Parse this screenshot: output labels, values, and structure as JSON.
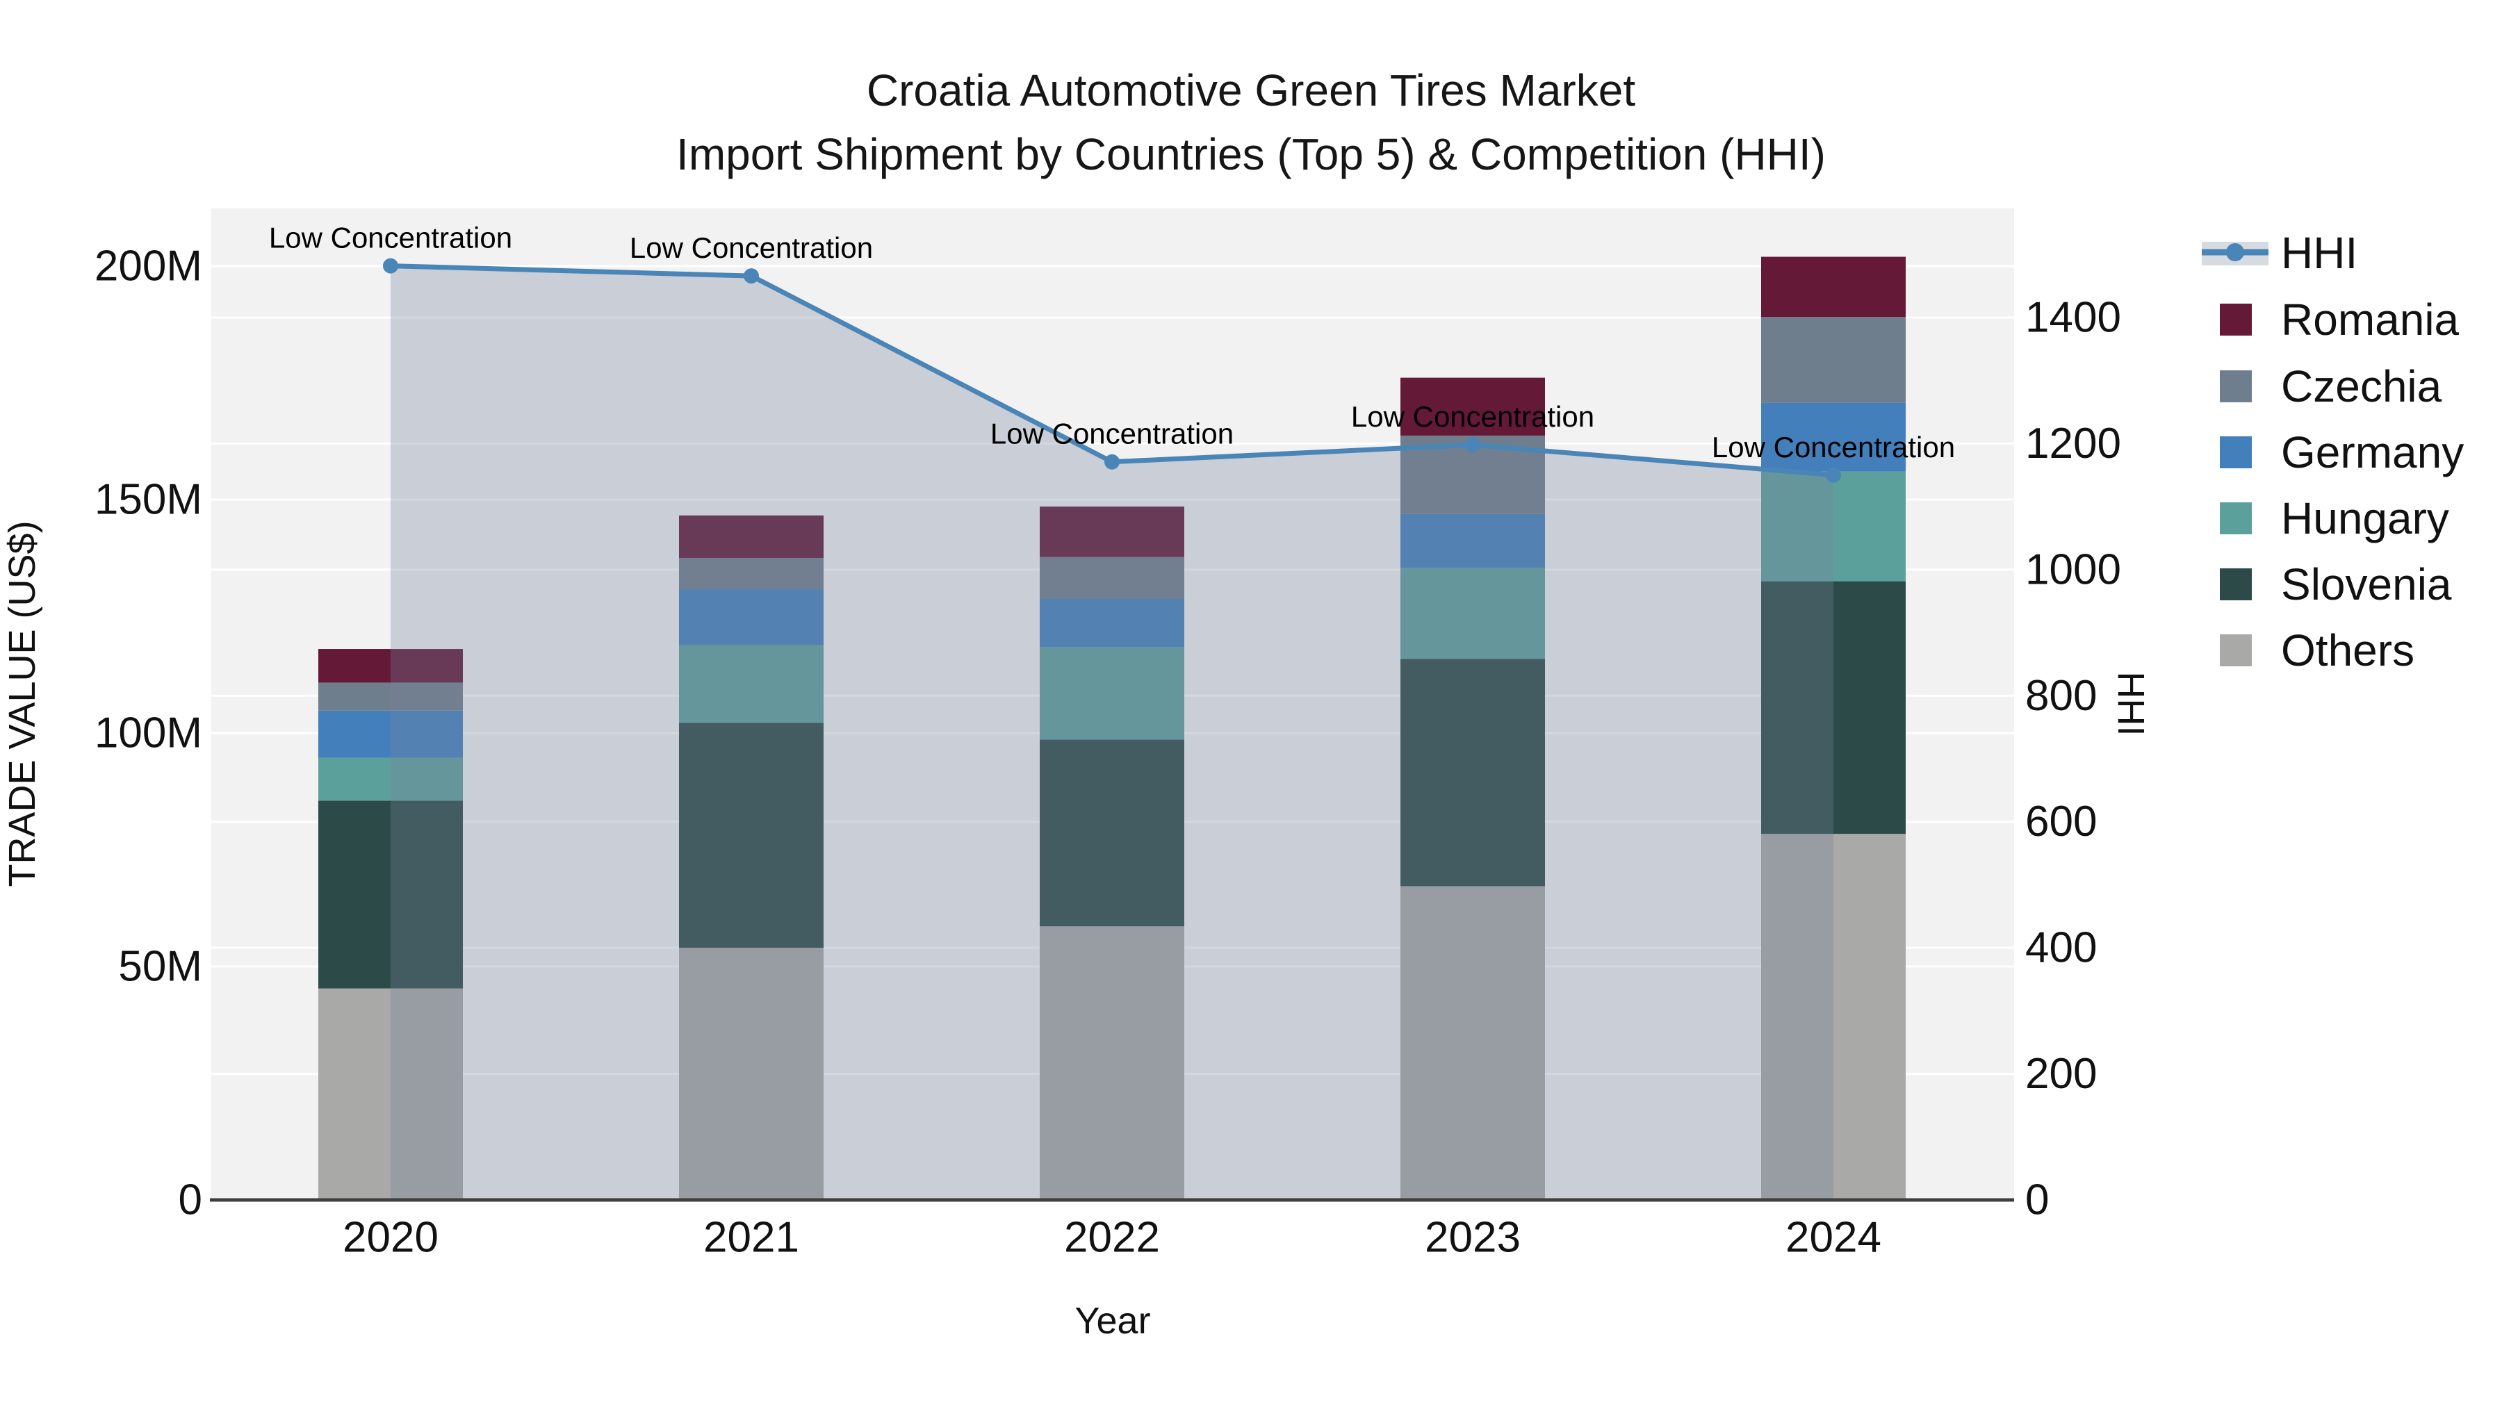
{
  "title": {
    "line1": "Croatia Automotive Green Tires Market",
    "line2": "Import Shipment by Countries (Top 5) & Competition (HHI)"
  },
  "axes": {
    "x": {
      "label": "Year",
      "ticks": [
        "2020",
        "2021",
        "2022",
        "2023",
        "2024"
      ]
    },
    "y_left": {
      "label": "TRADE VALUE (US$)",
      "tick_labels": [
        "0",
        "50M",
        "100M",
        "150M",
        "200M"
      ],
      "tick_values": [
        0,
        50,
        100,
        150,
        200
      ],
      "max": 212
    },
    "y_right": {
      "label": "HHI",
      "tick_labels": [
        "0",
        "200",
        "400",
        "600",
        "800",
        "1000",
        "1200",
        "1400"
      ],
      "tick_values": [
        0,
        200,
        400,
        600,
        800,
        1000,
        1200,
        1400
      ],
      "max": 1573
    }
  },
  "legend": {
    "items": [
      {
        "label": "HHI",
        "type": "line",
        "color": "#4A85B8"
      },
      {
        "label": "Romania",
        "type": "bar",
        "color": "#641937"
      },
      {
        "label": "Czechia",
        "type": "bar",
        "color": "#6F7E8C"
      },
      {
        "label": "Germany",
        "type": "bar",
        "color": "#4380BB"
      },
      {
        "label": "Hungary",
        "type": "bar",
        "color": "#5CA09C"
      },
      {
        "label": "Slovenia",
        "type": "bar",
        "color": "#2C4B48"
      },
      {
        "label": "Others",
        "type": "bar",
        "color": "#A9A9A7"
      }
    ]
  },
  "colors": {
    "plot_bg": "#F2F2F2",
    "grid": "#FFFFFF",
    "axis_line": "#3F3F3F",
    "hhi_line": "#4A85B8",
    "hhi_area_fill": "rgba(119,132,155,0.32)",
    "hhi_band": "#D6DAE1",
    "text": "#111111"
  },
  "chart_data": {
    "type": "bar",
    "stacked": true,
    "title": "Croatia Automotive Green Tires Market — Import Shipment by Countries (Top 5) & Competition (HHI)",
    "categories": [
      "2020",
      "2021",
      "2022",
      "2023",
      "2024"
    ],
    "xlabel": "Year",
    "ylabel": "TRADE VALUE (US$)",
    "ylabel_right": "HHI",
    "unit": "million US$",
    "ylim_left": [
      0,
      212
    ],
    "ylim_right": [
      0,
      1573
    ],
    "grid": true,
    "legend_position": "right",
    "series": [
      {
        "name": "Others",
        "color": "#A9A9A7",
        "values": [
          45.3,
          54.0,
          58.6,
          67.2,
          78.4
        ]
      },
      {
        "name": "Slovenia",
        "color": "#2C4B48",
        "values": [
          40.2,
          48.2,
          40.0,
          48.7,
          54.1
        ]
      },
      {
        "name": "Hungary",
        "color": "#5CA09C",
        "values": [
          9.2,
          16.6,
          19.8,
          19.5,
          23.5
        ]
      },
      {
        "name": "Germany",
        "color": "#4380BB",
        "values": [
          10.1,
          12.0,
          10.4,
          11.5,
          14.7
        ]
      },
      {
        "name": "Czechia",
        "color": "#6F7E8C",
        "values": [
          6.0,
          6.7,
          8.9,
          16.8,
          18.4
        ]
      },
      {
        "name": "Romania",
        "color": "#641937",
        "values": [
          7.2,
          9.1,
          10.8,
          12.4,
          12.9
        ]
      }
    ],
    "totals": [
      118.0,
      146.6,
      148.5,
      176.1,
      202.0
    ],
    "line": {
      "name": "HHI",
      "axis": "right",
      "color": "#4A85B8",
      "values": [
        1482,
        1466,
        1171,
        1198,
        1150
      ],
      "point_annotations": [
        "Low Concentration",
        "Low Concentration",
        "Low Concentration",
        "Low Concentration",
        "Low Concentration"
      ]
    }
  }
}
